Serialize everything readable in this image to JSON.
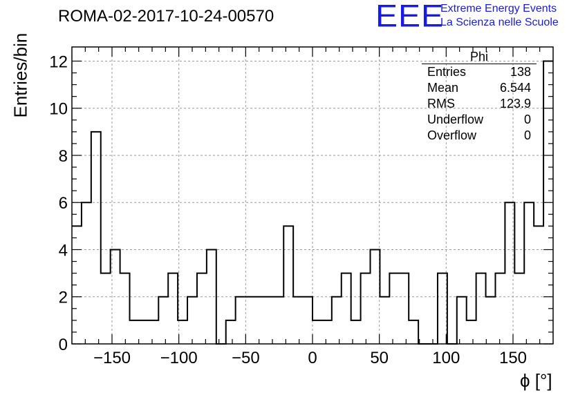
{
  "title": "ROMA-02-2017-10-24-00570",
  "logo": {
    "mark": "EEE",
    "line1": "Extreme Energy Events",
    "line2": "La Scienza nelle Scuole",
    "color": "#1a1ae6"
  },
  "stats": {
    "name": "Phi",
    "rows": [
      {
        "label": "Entries",
        "value": "138"
      },
      {
        "label": "Mean",
        "value": "6.544"
      },
      {
        "label": "RMS",
        "value": "123.9"
      },
      {
        "label": "Underflow",
        "value": "0"
      },
      {
        "label": "Overflow",
        "value": "0"
      }
    ]
  },
  "chart_data": {
    "type": "histogram",
    "ylabel": "Entries/bin",
    "xlabel": "ϕ [°]",
    "xlim": [
      -180,
      180
    ],
    "ylim": [
      0,
      12.6
    ],
    "bin_width": 7.2,
    "x_ticks": [
      -150,
      -100,
      -50,
      0,
      50,
      100,
      150
    ],
    "y_ticks": [
      0,
      2,
      4,
      6,
      8,
      10,
      12
    ],
    "grid": true,
    "line_color": "#000000",
    "bins": [
      {
        "x_low": -180.0,
        "x_high": -172.8,
        "count": 5
      },
      {
        "x_low": -172.8,
        "x_high": -165.6,
        "count": 6
      },
      {
        "x_low": -165.6,
        "x_high": -158.4,
        "count": 9
      },
      {
        "x_low": -158.4,
        "x_high": -151.2,
        "count": 3
      },
      {
        "x_low": -151.2,
        "x_high": -144.0,
        "count": 4
      },
      {
        "x_low": -144.0,
        "x_high": -136.8,
        "count": 3
      },
      {
        "x_low": -136.8,
        "x_high": -129.6,
        "count": 1
      },
      {
        "x_low": -129.6,
        "x_high": -122.4,
        "count": 1
      },
      {
        "x_low": -122.4,
        "x_high": -115.2,
        "count": 1
      },
      {
        "x_low": -115.2,
        "x_high": -108.0,
        "count": 2
      },
      {
        "x_low": -108.0,
        "x_high": -100.8,
        "count": 3
      },
      {
        "x_low": -100.8,
        "x_high": -93.6,
        "count": 1
      },
      {
        "x_low": -93.6,
        "x_high": -86.4,
        "count": 2
      },
      {
        "x_low": -86.4,
        "x_high": -79.2,
        "count": 3
      },
      {
        "x_low": -79.2,
        "x_high": -72.0,
        "count": 4
      },
      {
        "x_low": -72.0,
        "x_high": -64.8,
        "count": 0
      },
      {
        "x_low": -64.8,
        "x_high": -57.6,
        "count": 1
      },
      {
        "x_low": -57.6,
        "x_high": -50.4,
        "count": 2
      },
      {
        "x_low": -50.4,
        "x_high": -43.2,
        "count": 2
      },
      {
        "x_low": -43.2,
        "x_high": -36.0,
        "count": 2
      },
      {
        "x_low": -36.0,
        "x_high": -28.8,
        "count": 2
      },
      {
        "x_low": -28.8,
        "x_high": -21.6,
        "count": 2
      },
      {
        "x_low": -21.6,
        "x_high": -14.4,
        "count": 5
      },
      {
        "x_low": -14.4,
        "x_high": -7.2,
        "count": 2
      },
      {
        "x_low": -7.2,
        "x_high": 0.0,
        "count": 2
      },
      {
        "x_low": 0.0,
        "x_high": 7.2,
        "count": 1
      },
      {
        "x_low": 7.2,
        "x_high": 14.4,
        "count": 1
      },
      {
        "x_low": 14.4,
        "x_high": 21.6,
        "count": 2
      },
      {
        "x_low": 21.6,
        "x_high": 28.8,
        "count": 3
      },
      {
        "x_low": 28.8,
        "x_high": 36.0,
        "count": 1
      },
      {
        "x_low": 36.0,
        "x_high": 43.2,
        "count": 3
      },
      {
        "x_low": 43.2,
        "x_high": 50.4,
        "count": 4
      },
      {
        "x_low": 50.4,
        "x_high": 57.6,
        "count": 2
      },
      {
        "x_low": 57.6,
        "x_high": 64.8,
        "count": 3
      },
      {
        "x_low": 64.8,
        "x_high": 72.0,
        "count": 3
      },
      {
        "x_low": 72.0,
        "x_high": 79.2,
        "count": 1
      },
      {
        "x_low": 79.2,
        "x_high": 86.4,
        "count": 0
      },
      {
        "x_low": 86.4,
        "x_high": 93.6,
        "count": 0
      },
      {
        "x_low": 93.6,
        "x_high": 100.8,
        "count": 3
      },
      {
        "x_low": 100.8,
        "x_high": 108.0,
        "count": 0
      },
      {
        "x_low": 108.0,
        "x_high": 115.2,
        "count": 2
      },
      {
        "x_low": 115.2,
        "x_high": 122.4,
        "count": 1
      },
      {
        "x_low": 122.4,
        "x_high": 129.6,
        "count": 3
      },
      {
        "x_low": 129.6,
        "x_high": 136.8,
        "count": 2
      },
      {
        "x_low": 136.8,
        "x_high": 144.0,
        "count": 3
      },
      {
        "x_low": 144.0,
        "x_high": 151.2,
        "count": 6
      },
      {
        "x_low": 151.2,
        "x_high": 158.4,
        "count": 3
      },
      {
        "x_low": 158.4,
        "x_high": 165.6,
        "count": 6
      },
      {
        "x_low": 165.6,
        "x_high": 172.8,
        "count": 5
      },
      {
        "x_low": 172.8,
        "x_high": 180.0,
        "count": 12
      }
    ]
  }
}
